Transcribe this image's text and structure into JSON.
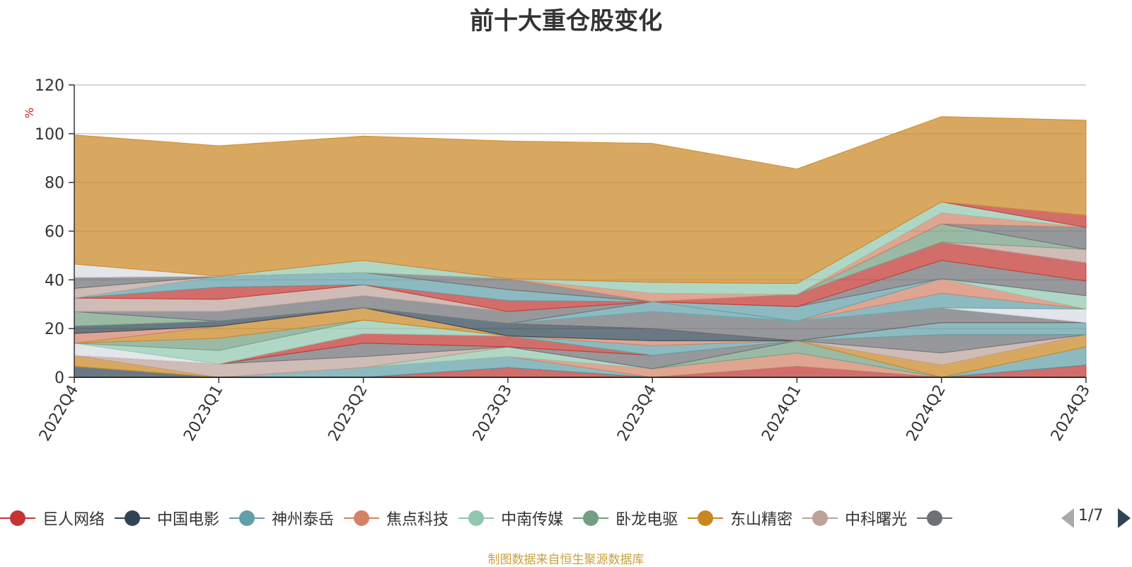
{
  "chart_data": {
    "type": "area",
    "title": "前十大重仓股变化",
    "ylabel": "%",
    "ylim": [
      0,
      120
    ],
    "yticks": [
      0,
      20,
      40,
      60,
      80,
      100,
      120
    ],
    "grid": true,
    "categories": [
      "2022Q4",
      "2023Q1",
      "2023Q2",
      "2023Q3",
      "2023Q4",
      "2024Q1",
      "2024Q2",
      "2024Q3"
    ],
    "series": [
      {
        "name": "巨人网络",
        "color": "#c23531",
        "values": [
          0,
          0,
          0,
          4,
          0,
          4.5,
          0,
          5
        ]
      },
      {
        "name": "中国电影",
        "color": "#2f4554",
        "values": [
          4.5,
          0,
          0,
          0,
          0,
          0,
          0,
          0
        ]
      },
      {
        "name": "神州泰岳",
        "color": "#61a0a8",
        "values": [
          0,
          0,
          4,
          4.5,
          0,
          0,
          0,
          7.5
        ]
      },
      {
        "name": "焦点科技",
        "color": "#d48265",
        "values": [
          0,
          0,
          0,
          0,
          3.5,
          5.5,
          0,
          0
        ]
      },
      {
        "name": "中南传媒",
        "color": "#91c7ae",
        "values": [
          0,
          0,
          0,
          4,
          0,
          0,
          0,
          0
        ]
      },
      {
        "name": "卧龙电驱",
        "color": "#749f83",
        "values": [
          0,
          0,
          0,
          0,
          0,
          5,
          0,
          0
        ]
      },
      {
        "name": "东山精密",
        "color": "#ca8622",
        "values": [
          4.5,
          0,
          0,
          0,
          0,
          0,
          5,
          5
        ]
      },
      {
        "name": "中科曙光",
        "color": "#bda29a",
        "values": [
          0,
          5.5,
          4.5,
          0,
          0,
          0,
          5,
          0
        ]
      },
      {
        "name": "",
        "color": "#6e7074",
        "values": [
          0,
          0,
          5.5,
          0,
          5.5,
          0,
          7.5,
          0
        ]
      },
      {
        "name": "",
        "color": "#c23531",
        "values": [
          0,
          0,
          4,
          4.5,
          0,
          0,
          0,
          0
        ]
      },
      {
        "name": "",
        "color": "#d7dbe2",
        "values": [
          5,
          0,
          0,
          0,
          0,
          0,
          0,
          0
        ]
      },
      {
        "name": "",
        "color": "#91c7ae",
        "values": [
          0,
          5.5,
          5.5,
          0,
          0,
          0,
          0,
          0
        ]
      },
      {
        "name": "",
        "color": "#749f83",
        "values": [
          0,
          5,
          0,
          0,
          0,
          0,
          0,
          0
        ]
      },
      {
        "name": "",
        "color": "#ca8622",
        "values": [
          0,
          5,
          5,
          0,
          0,
          0,
          0,
          0
        ]
      },
      {
        "name": "",
        "color": "#61a0a8",
        "values": [
          0,
          0,
          0,
          0,
          4,
          0,
          5,
          5
        ]
      },
      {
        "name": "",
        "color": "#d48265",
        "values": [
          4,
          0,
          0,
          0,
          2,
          0,
          0,
          0
        ]
      },
      {
        "name": "",
        "color": "#2f4554",
        "values": [
          3,
          2,
          0,
          5,
          5,
          0,
          0,
          0
        ]
      },
      {
        "name": "",
        "color": "#c23531",
        "values": [
          0,
          0,
          0,
          0,
          0,
          0,
          0,
          0
        ]
      },
      {
        "name": "",
        "color": "#6e7074",
        "values": [
          0,
          0,
          0,
          0,
          7,
          8,
          6,
          0
        ]
      },
      {
        "name": "",
        "color": "#749f83",
        "values": [
          6,
          0,
          0,
          0,
          0,
          0,
          0,
          0
        ]
      },
      {
        "name": "",
        "color": "#d7dbe2",
        "values": [
          0,
          0,
          0,
          0,
          0,
          0,
          0,
          5.5
        ]
      },
      {
        "name": "",
        "color": "#61a0a8",
        "values": [
          0,
          0,
          0,
          0,
          4,
          0,
          6,
          0
        ]
      },
      {
        "name": "",
        "color": "#d48265",
        "values": [
          0,
          0,
          0,
          0,
          0,
          0,
          6,
          0
        ]
      },
      {
        "name": "",
        "color": "#91c7ae",
        "values": [
          0,
          0,
          0,
          0,
          0,
          0,
          0,
          5.5
        ]
      },
      {
        "name": "",
        "color": "#61a0a8",
        "values": [
          0,
          0,
          0,
          0,
          0,
          6,
          0,
          0
        ]
      },
      {
        "name": "",
        "color": "#6e7074",
        "values": [
          0,
          4,
          5,
          5,
          0,
          0,
          7.5,
          6
        ]
      },
      {
        "name": "",
        "color": "#bda29a",
        "values": [
          5.5,
          5,
          4.5,
          0,
          0,
          0,
          0,
          0
        ]
      },
      {
        "name": "",
        "color": "#c23531",
        "values": [
          0,
          5,
          0,
          4.5,
          0,
          5,
          7.5,
          7.5
        ]
      },
      {
        "name": "",
        "color": "#61a0a8",
        "values": [
          0,
          4.5,
          5,
          4.5,
          0,
          0,
          0,
          0
        ]
      },
      {
        "name": "",
        "color": "#bda29a",
        "values": [
          4,
          0,
          0,
          0,
          0,
          0,
          0,
          5.5
        ]
      },
      {
        "name": "",
        "color": "#749f83",
        "values": [
          0,
          0,
          0,
          0,
          0,
          0,
          7.5,
          0
        ]
      },
      {
        "name": "",
        "color": "#6e7074",
        "values": [
          4.5,
          0,
          0,
          4.5,
          0,
          0,
          0,
          9
        ]
      },
      {
        "name": "",
        "color": "#d48265",
        "values": [
          0,
          0,
          0,
          0,
          3.5,
          0,
          4.5,
          0
        ]
      },
      {
        "name": "",
        "color": "#91c7ae",
        "values": [
          0,
          0,
          5,
          0,
          4.5,
          4.5,
          4.5,
          0
        ]
      },
      {
        "name": "",
        "color": "#c23531",
        "values": [
          0,
          0,
          0,
          0,
          0,
          0,
          0,
          5
        ]
      },
      {
        "name": "",
        "color": "#d7dbe2",
        "values": [
          5.5,
          0,
          0,
          0,
          0,
          0,
          0,
          0
        ]
      },
      {
        "name": "",
        "color": "#ca8622",
        "values": [
          53,
          53.5,
          51,
          56.5,
          57,
          47,
          35,
          39
        ]
      }
    ]
  },
  "legend": {
    "items": [
      {
        "label": "巨人网络",
        "color": "#c23531"
      },
      {
        "label": "中国电影",
        "color": "#2f4554"
      },
      {
        "label": "神州泰岳",
        "color": "#61a0a8"
      },
      {
        "label": "焦点科技",
        "color": "#d48265"
      },
      {
        "label": "中南传媒",
        "color": "#91c7ae"
      },
      {
        "label": "卧龙电驱",
        "color": "#749f83"
      },
      {
        "label": "东山精密",
        "color": "#ca8622"
      },
      {
        "label": "中科曙光",
        "color": "#bda29a"
      },
      {
        "label": "",
        "color": "#6e7074"
      }
    ],
    "page_text": "1/7"
  },
  "source_note": "制图数据来自恒生聚源数据库"
}
